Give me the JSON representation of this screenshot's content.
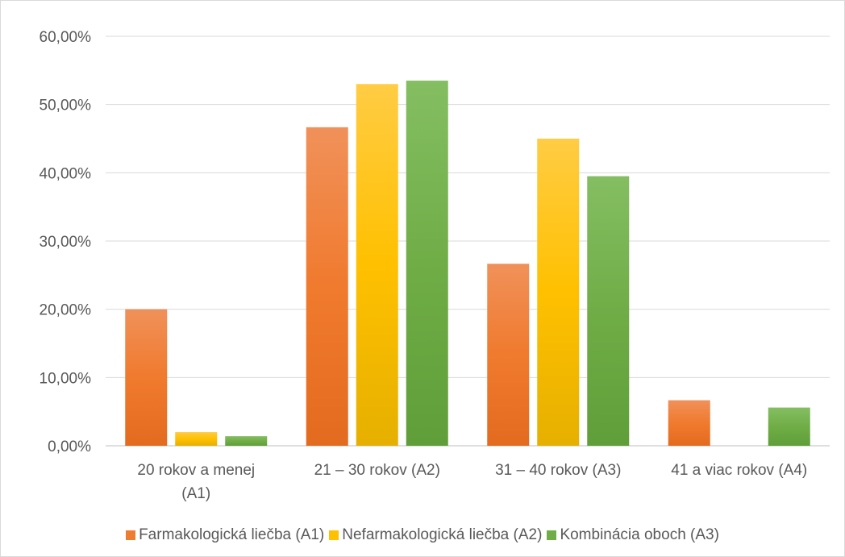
{
  "chart_data": {
    "type": "bar",
    "categories": [
      [
        "20 rokov a menej",
        "(A1)"
      ],
      [
        "21 – 30 rokov (A2)"
      ],
      [
        "31 – 40 rokov (A3)"
      ],
      [
        "41 a viac rokov (A4)"
      ]
    ],
    "series": [
      {
        "name": "Farmakologická liečba (A1)",
        "color": "#ed7d31",
        "values": [
          20.0,
          46.67,
          26.67,
          6.67
        ]
      },
      {
        "name": "Nefarmakologická liečba (A2)",
        "color": "#ffc000",
        "values": [
          2.0,
          53.0,
          45.0,
          0.0
        ]
      },
      {
        "name": "Kombinácia oboch (A3)",
        "color": "#70ad47",
        "values": [
          1.4,
          53.5,
          39.5,
          5.6
        ]
      }
    ],
    "ylim": [
      0,
      60
    ],
    "yticks": [
      "0,00%",
      "10,00%",
      "20,00%",
      "30,00%",
      "40,00%",
      "50,00%",
      "60,00%"
    ],
    "grid": true,
    "legend_position": "bottom"
  }
}
